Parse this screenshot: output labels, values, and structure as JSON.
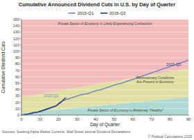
{
  "chart_data": {
    "type": "line",
    "title": "Cumulative Announced Dividend Cuts in U.S. by Day of Quarter",
    "xlabel": "Day of Quarter",
    "ylabel": "Cumulative Dividend Cuts",
    "xlim": [
      0,
      90
    ],
    "ylim": [
      0,
      150
    ],
    "xticks": [
      0,
      10,
      20,
      30,
      40,
      50,
      60,
      70,
      80,
      90
    ],
    "yticks": [
      0,
      10,
      20,
      30,
      40,
      50,
      60,
      70,
      80,
      90,
      100,
      110,
      120,
      130,
      140,
      150
    ],
    "grid": true,
    "source": "Sources: Seeking Alpha Market Currents, Wall Street Journal Dividend Declarations",
    "credit": "© Political Calculations 2015",
    "zone_x": [
      0,
      90
    ],
    "zones": [
      {
        "label": "Private Sector of Economy Is Relatively \"Healthy\"",
        "color": "#aed8d2",
        "lower": [
          0,
          0
        ],
        "upper": [
          3,
          28
        ],
        "label_x": 56,
        "label_y": 7
      },
      {
        "label": "Recessionary Conditions\nAre Present in Economy",
        "color": "#e0dea0",
        "lower": [
          3,
          28
        ],
        "upper": [
          28,
          73
        ],
        "label_x": 72,
        "label_y": 55
      },
      {
        "label": "Private Sector of Economy Is Likely Experiencing Contraction",
        "color": "#f2baba",
        "lower": [
          28,
          73
        ],
        "upper": [
          150,
          150
        ],
        "label_x": 45,
        "label_y": 143
      }
    ],
    "series": [
      {
        "name": "2015-Q1",
        "color": "#7080c0",
        "x": [
          0,
          1,
          2,
          3,
          4,
          5,
          6,
          7,
          8,
          9,
          10,
          11,
          12,
          13,
          14,
          15,
          16,
          17,
          18,
          19,
          20,
          21,
          22,
          23,
          24,
          25,
          26,
          27,
          28,
          29,
          30,
          31,
          32,
          33,
          34,
          35,
          36,
          37,
          38,
          39,
          40,
          41,
          42,
          43,
          44,
          45,
          46,
          47,
          48,
          49,
          50,
          51,
          52,
          53,
          54,
          55,
          56,
          57,
          58,
          59,
          60,
          61,
          62,
          63,
          64,
          65,
          66,
          67,
          68,
          69,
          70,
          71,
          72,
          73,
          74,
          75,
          76,
          77,
          78,
          79,
          80,
          81,
          82,
          83,
          84,
          85,
          86,
          87,
          88,
          89,
          90
        ],
        "values": [
          0,
          0,
          1,
          1,
          2,
          3,
          4,
          4,
          4,
          5,
          5,
          6,
          7,
          8,
          9,
          10,
          11,
          12,
          13,
          15,
          17,
          19,
          22,
          23,
          24,
          25,
          26,
          27,
          28,
          29,
          30,
          31,
          32,
          32,
          33,
          33,
          34,
          35,
          36,
          37,
          38,
          39,
          39,
          40,
          41,
          42,
          43,
          44,
          45,
          46,
          47,
          48,
          49,
          49,
          50,
          51,
          52,
          53,
          54,
          55,
          56,
          57,
          58,
          59,
          60,
          61,
          62,
          63,
          64,
          65,
          66,
          67,
          68,
          69,
          70,
          71,
          72,
          73,
          74,
          75,
          76,
          77,
          78,
          79,
          80,
          81,
          82,
          83,
          84,
          85,
          86
        ]
      },
      {
        "name": "2015-Q2",
        "color": "#203878",
        "x": [
          0,
          1,
          2,
          3,
          4,
          5,
          6,
          7,
          8,
          9,
          10,
          11,
          12,
          13,
          14,
          15,
          16,
          17,
          18,
          19,
          20,
          21,
          22,
          23,
          24
        ],
        "values": [
          0,
          0,
          1,
          1,
          2,
          2,
          3,
          4,
          4,
          5,
          6,
          7,
          8,
          9,
          10,
          11,
          12,
          13,
          14,
          15,
          18,
          20,
          22,
          25,
          27
        ]
      }
    ],
    "annotations": [
      {
        "text": "2015-Q1",
        "x": 12,
        "y": 28,
        "color": "#7080c0"
      },
      {
        "text": "2015-Q2",
        "x": 78,
        "y": 77,
        "color": "#203878"
      }
    ]
  }
}
